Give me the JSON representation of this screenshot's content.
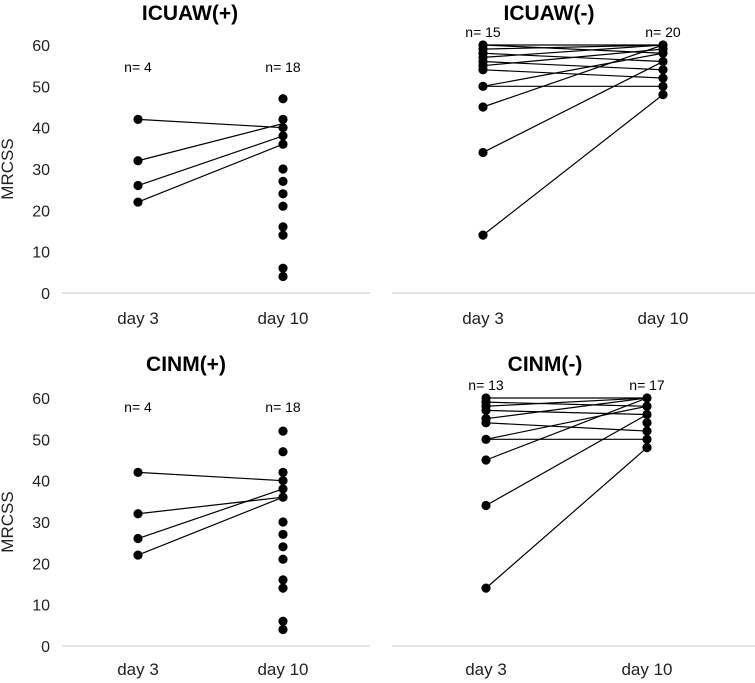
{
  "chart_data": [
    {
      "type": "line",
      "title": "ICUAW(+)",
      "ylabel": "MRCSS",
      "show_y_axis": true,
      "ylim": [
        0,
        60
      ],
      "yticks": [
        0,
        10,
        20,
        30,
        40,
        50,
        60
      ],
      "categories": [
        "day 3",
        "day 10"
      ],
      "n_labels": [
        "n= 4",
        "n= 18"
      ],
      "pairs": [
        [
          42,
          40
        ],
        [
          32,
          41
        ],
        [
          26,
          38
        ],
        [
          22,
          36
        ]
      ],
      "day3_points": [
        42,
        32,
        26,
        22
      ],
      "day10_points": [
        47,
        42,
        40,
        38,
        36,
        30,
        27,
        24,
        21,
        16,
        14,
        6,
        4
      ]
    },
    {
      "type": "line",
      "title": "ICUAW(-)",
      "ylabel": "",
      "show_y_axis": false,
      "ylim": [
        0,
        60
      ],
      "yticks": [],
      "categories": [
        "day 3",
        "day 10"
      ],
      "n_labels": [
        "n= 15",
        "n= 20"
      ],
      "pairs": [
        [
          60,
          60
        ],
        [
          60,
          58
        ],
        [
          59,
          60
        ],
        [
          58,
          56
        ],
        [
          57,
          60
        ],
        [
          56,
          54
        ],
        [
          55,
          59
        ],
        [
          54,
          52
        ],
        [
          50,
          58
        ],
        [
          50,
          50
        ],
        [
          45,
          60
        ],
        [
          34,
          56
        ],
        [
          14,
          48
        ]
      ],
      "day3_points": [
        60,
        59,
        58,
        57,
        56,
        55,
        54,
        50,
        45,
        34,
        14
      ],
      "day10_points": [
        60,
        59,
        58,
        56,
        54,
        52,
        50,
        48
      ]
    },
    {
      "type": "line",
      "title": "CINM(+)",
      "ylabel": "MRCSS",
      "show_y_axis": true,
      "ylim": [
        0,
        60
      ],
      "yticks": [
        0,
        10,
        20,
        30,
        40,
        50,
        60
      ],
      "categories": [
        "day 3",
        "day 10"
      ],
      "n_labels": [
        "n= 4",
        "n= 18"
      ],
      "pairs": [
        [
          42,
          40
        ],
        [
          32,
          36
        ],
        [
          26,
          38
        ],
        [
          22,
          36
        ]
      ],
      "day3_points": [
        42,
        32,
        26,
        22
      ],
      "day10_points": [
        52,
        47,
        42,
        40,
        38,
        36,
        30,
        27,
        24,
        21,
        16,
        14,
        6,
        4
      ]
    },
    {
      "type": "line",
      "title": "CINM(-)",
      "ylabel": "",
      "show_y_axis": false,
      "ylim": [
        0,
        60
      ],
      "yticks": [],
      "categories": [
        "day 3",
        "day 10"
      ],
      "n_labels": [
        "n= 13",
        "n= 17"
      ],
      "pairs": [
        [
          60,
          60
        ],
        [
          59,
          58
        ],
        [
          58,
          60
        ],
        [
          57,
          56
        ],
        [
          55,
          60
        ],
        [
          54,
          52
        ],
        [
          50,
          58
        ],
        [
          50,
          50
        ],
        [
          45,
          60
        ],
        [
          34,
          56
        ],
        [
          14,
          48
        ]
      ],
      "day3_points": [
        60,
        59,
        58,
        57,
        55,
        54,
        50,
        45,
        34,
        14
      ],
      "day10_points": [
        60,
        58,
        56,
        54,
        52,
        50,
        48
      ]
    }
  ]
}
